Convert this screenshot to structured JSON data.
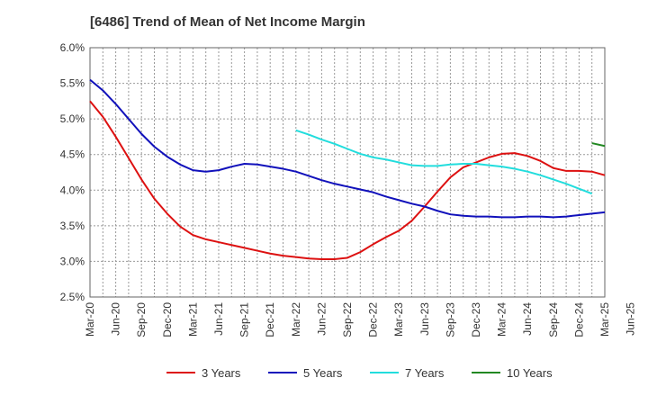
{
  "chart_data": {
    "type": "line",
    "title": "[6486]  Trend of Mean of Net Income Margin",
    "xlabel": "",
    "ylabel": "",
    "x_tick_labels": [
      "Mar-20",
      "Jun-20",
      "Sep-20",
      "Dec-20",
      "Mar-21",
      "Jun-21",
      "Sep-21",
      "Dec-21",
      "Mar-22",
      "Jun-22",
      "Sep-22",
      "Dec-22",
      "Mar-23",
      "Jun-23",
      "Sep-23",
      "Dec-23",
      "Mar-24",
      "Jun-24",
      "Sep-24",
      "Dec-24",
      "Mar-25",
      "Jun-25"
    ],
    "y_tick_labels": [
      "2.5%",
      "3.0%",
      "3.5%",
      "4.0%",
      "4.5%",
      "5.0%",
      "5.5%",
      "6.0%"
    ],
    "ylim": [
      2.5,
      6.0
    ],
    "y_unit": "%",
    "grid": true,
    "legend_position": "bottom",
    "series": [
      {
        "name": "3 Years",
        "color": "#dd1111",
        "start_index": 0,
        "values": [
          5.25,
          5.03,
          4.75,
          4.45,
          4.15,
          3.88,
          3.67,
          3.49,
          3.37,
          3.31,
          3.27,
          3.23,
          3.19,
          3.15,
          3.11,
          3.08,
          3.06,
          3.04,
          3.03,
          3.03,
          3.05,
          3.13,
          3.24,
          3.34,
          3.43,
          3.57,
          3.77,
          3.98,
          4.18,
          4.32,
          4.39,
          4.46,
          4.51,
          4.52,
          4.48,
          4.41,
          4.31,
          4.27,
          4.27,
          4.26,
          4.21
        ]
      },
      {
        "name": "5 Years",
        "color": "#1111bb",
        "start_index": 0,
        "values": [
          5.55,
          5.4,
          5.21,
          5.0,
          4.79,
          4.61,
          4.47,
          4.36,
          4.28,
          4.26,
          4.28,
          4.33,
          4.37,
          4.36,
          4.33,
          4.3,
          4.26,
          4.2,
          4.14,
          4.09,
          4.05,
          4.01,
          3.97,
          3.91,
          3.86,
          3.81,
          3.77,
          3.71,
          3.66,
          3.64,
          3.63,
          3.63,
          3.62,
          3.62,
          3.63,
          3.63,
          3.62,
          3.63,
          3.65,
          3.67,
          3.69
        ]
      },
      {
        "name": "7 Years",
        "color": "#22dddd",
        "start_index": 16,
        "values": [
          4.84,
          4.78,
          4.71,
          4.65,
          4.58,
          4.51,
          4.46,
          4.43,
          4.39,
          4.35,
          4.34,
          4.34,
          4.36,
          4.37,
          4.37,
          4.35,
          4.33,
          4.3,
          4.26,
          4.21,
          4.15,
          4.09,
          4.02,
          3.95
        ]
      },
      {
        "name": "10 Years",
        "color": "#228822",
        "start_index": 39,
        "values": [
          4.66,
          4.62
        ]
      }
    ]
  }
}
